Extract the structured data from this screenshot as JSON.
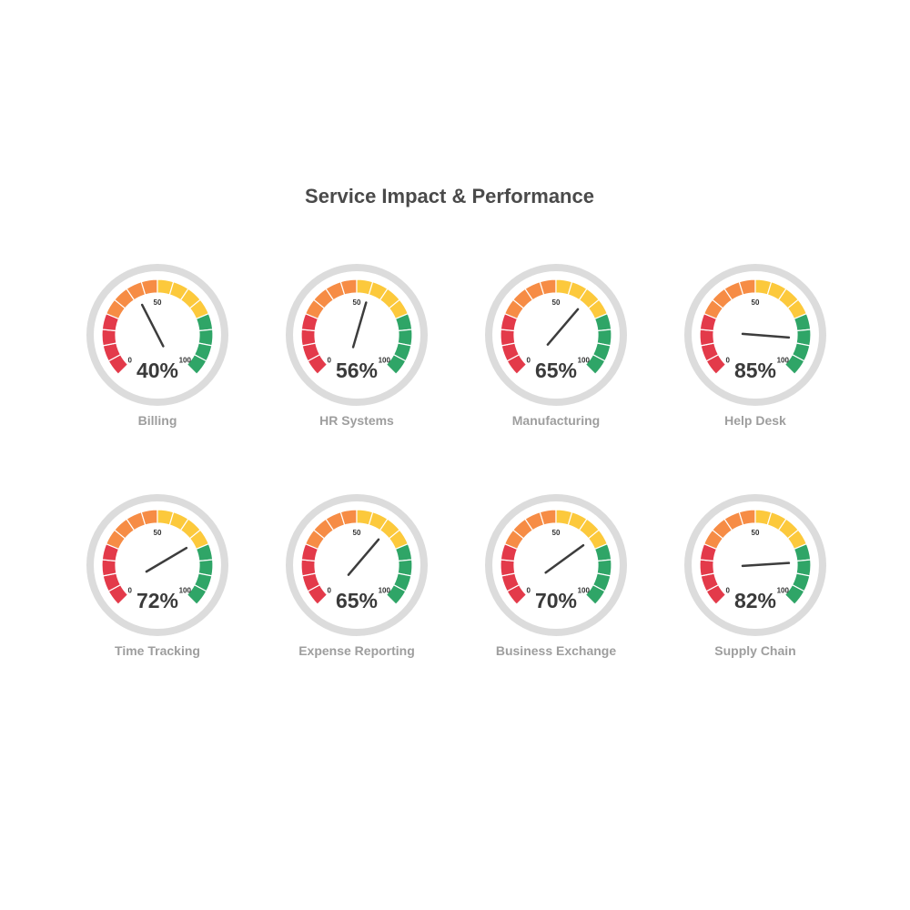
{
  "title": "Service Impact & Performance",
  "colors": {
    "red": "#e33a4a",
    "orange": "#f68c45",
    "yellow": "#fcc93c",
    "green": "#2fa567",
    "rim": "#dcdcdc",
    "needle": "#3d3d3d"
  },
  "chart_data": {
    "type": "gauge",
    "title": "Service Impact & Performance",
    "scale": {
      "min": 0,
      "max": 100,
      "tick_labels": [
        "0",
        "50",
        "100"
      ]
    },
    "bands": [
      {
        "from": 0,
        "to": 25,
        "color": "#e33a4a"
      },
      {
        "from": 25,
        "to": 50,
        "color": "#f68c45"
      },
      {
        "from": 50,
        "to": 75,
        "color": "#fcc93c"
      },
      {
        "from": 75,
        "to": 100,
        "color": "#2fa567"
      }
    ],
    "gauges": [
      {
        "name": "Billing",
        "value": 40,
        "value_label": "40%"
      },
      {
        "name": "HR Systems",
        "value": 56,
        "value_label": "56%"
      },
      {
        "name": "Manufacturing",
        "value": 65,
        "value_label": "65%"
      },
      {
        "name": "Help Desk",
        "value": 85,
        "value_label": "85%"
      },
      {
        "name": "Time Tracking",
        "value": 72,
        "value_label": "72%"
      },
      {
        "name": "Expense Reporting",
        "value": 65,
        "value_label": "65%"
      },
      {
        "name": "Business Exchange",
        "value": 70,
        "value_label": "70%"
      },
      {
        "name": "Supply Chain",
        "value": 82,
        "value_label": "82%"
      }
    ]
  }
}
